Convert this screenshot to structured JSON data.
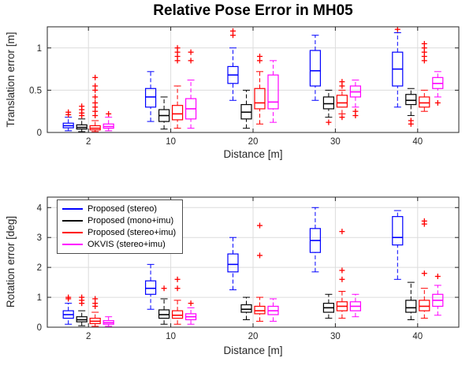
{
  "figure": {
    "title": "Relative Pose Error in MH05"
  },
  "colors": {
    "stereo": "#0000ff",
    "mono_imu": "#000000",
    "stereo_imu": "#ff0000",
    "okvis": "#ff00ff",
    "outlier": "#ff0000",
    "grid": "#dcdcdc",
    "axis": "#262626"
  },
  "chart_data": [
    {
      "type": "boxplot",
      "title": "Relative Pose Error in MH05",
      "xlabel": "Distance [m]",
      "ylabel": "Translation error [m]",
      "categories": [
        "2",
        "10",
        "20",
        "30",
        "40"
      ],
      "ylim": [
        0,
        1.25
      ],
      "yticks": [
        0,
        0.5,
        1
      ],
      "ytick_labels": [
        "0",
        "0.5",
        "1"
      ],
      "grid": true,
      "series": [
        {
          "name": "Proposed (stereo)",
          "color": "#0000ff",
          "boxes": [
            {
              "whislo": 0.02,
              "q1": 0.055,
              "med": 0.08,
              "q3": 0.11,
              "whishi": 0.18,
              "fliers": [
                0.21,
                0.24
              ]
            },
            {
              "whislo": 0.13,
              "q1": 0.3,
              "med": 0.42,
              "q3": 0.52,
              "whishi": 0.72,
              "fliers": []
            },
            {
              "whislo": 0.38,
              "q1": 0.58,
              "med": 0.68,
              "q3": 0.78,
              "whishi": 1.0,
              "fliers": [
                1.15,
                1.2
              ]
            },
            {
              "whislo": 0.38,
              "q1": 0.55,
              "med": 0.73,
              "q3": 0.97,
              "whishi": 1.15,
              "fliers": []
            },
            {
              "whislo": 0.3,
              "q1": 0.55,
              "med": 0.75,
              "q3": 0.95,
              "whishi": 1.18,
              "fliers": [
                1.22
              ]
            }
          ]
        },
        {
          "name": "Proposed (mono+imu)",
          "color": "#000000",
          "boxes": [
            {
              "whislo": 0.01,
              "q1": 0.04,
              "med": 0.06,
              "q3": 0.09,
              "whishi": 0.16,
              "fliers": [
                0.2,
                0.23,
                0.27,
                0.31
              ]
            },
            {
              "whislo": 0.04,
              "q1": 0.13,
              "med": 0.2,
              "q3": 0.27,
              "whishi": 0.42,
              "fliers": []
            },
            {
              "whislo": 0.05,
              "q1": 0.16,
              "med": 0.24,
              "q3": 0.33,
              "whishi": 0.5,
              "fliers": []
            },
            {
              "whislo": 0.18,
              "q1": 0.28,
              "med": 0.34,
              "q3": 0.42,
              "whishi": 0.5,
              "fliers": [
                0.12
              ]
            },
            {
              "whislo": 0.2,
              "q1": 0.33,
              "med": 0.38,
              "q3": 0.45,
              "whishi": 0.52,
              "fliers": [
                0.1,
                0.14
              ]
            }
          ]
        },
        {
          "name": "Proposed (stereo+imu)",
          "color": "#ff0000",
          "boxes": [
            {
              "whislo": 0.01,
              "q1": 0.03,
              "med": 0.05,
              "q3": 0.08,
              "whishi": 0.14,
              "fliers": [
                0.2,
                0.25,
                0.3,
                0.35,
                0.42,
                0.5,
                0.55,
                0.65
              ]
            },
            {
              "whislo": 0.05,
              "q1": 0.15,
              "med": 0.22,
              "q3": 0.32,
              "whishi": 0.55,
              "fliers": [
                0.85,
                0.9,
                0.95,
                1.0
              ]
            },
            {
              "whislo": 0.1,
              "q1": 0.28,
              "med": 0.35,
              "q3": 0.52,
              "whishi": 0.72,
              "fliers": [
                0.85,
                0.9
              ]
            },
            {
              "whislo": 0.22,
              "q1": 0.3,
              "med": 0.35,
              "q3": 0.44,
              "whishi": 0.5,
              "fliers": [
                0.18,
                0.55,
                0.6
              ]
            },
            {
              "whislo": 0.25,
              "q1": 0.3,
              "med": 0.35,
              "q3": 0.42,
              "whishi": 0.5,
              "fliers": [
                0.85,
                0.9,
                0.95,
                1.0,
                1.05
              ]
            }
          ]
        },
        {
          "name": "OKVIS (stereo+imu)",
          "color": "#ff00ff",
          "boxes": [
            {
              "whislo": 0.02,
              "q1": 0.05,
              "med": 0.07,
              "q3": 0.1,
              "whishi": 0.18,
              "fliers": [
                0.22
              ]
            },
            {
              "whislo": 0.05,
              "q1": 0.16,
              "med": 0.28,
              "q3": 0.4,
              "whishi": 0.62,
              "fliers": [
                0.85,
                0.95
              ]
            },
            {
              "whislo": 0.12,
              "q1": 0.28,
              "med": 0.36,
              "q3": 0.68,
              "whishi": 0.85,
              "fliers": []
            },
            {
              "whislo": 0.3,
              "q1": 0.42,
              "med": 0.48,
              "q3": 0.55,
              "whishi": 0.62,
              "fliers": [
                0.2,
                0.25
              ]
            },
            {
              "whislo": 0.42,
              "q1": 0.52,
              "med": 0.58,
              "q3": 0.65,
              "whishi": 0.72,
              "fliers": [
                0.35
              ]
            }
          ]
        }
      ]
    },
    {
      "type": "boxplot",
      "xlabel": "Distance [m]",
      "ylabel": "Rotation error [deg]",
      "categories": [
        "2",
        "10",
        "20",
        "30",
        "40"
      ],
      "ylim": [
        0,
        4.35
      ],
      "yticks": [
        0,
        1,
        2,
        3,
        4
      ],
      "ytick_labels": [
        "0",
        "1",
        "2",
        "3",
        "4"
      ],
      "grid": true,
      "legend_position": "top-left",
      "series": [
        {
          "name": "Proposed (stereo)",
          "color": "#0000ff",
          "boxes": [
            {
              "whislo": 0.1,
              "q1": 0.3,
              "med": 0.42,
              "q3": 0.55,
              "whishi": 0.8,
              "fliers": [
                0.95,
                1.0
              ]
            },
            {
              "whislo": 0.6,
              "q1": 1.1,
              "med": 1.3,
              "q3": 1.55,
              "whishi": 2.1,
              "fliers": []
            },
            {
              "whislo": 1.25,
              "q1": 1.85,
              "med": 2.1,
              "q3": 2.45,
              "whishi": 3.0,
              "fliers": []
            },
            {
              "whislo": 1.85,
              "q1": 2.5,
              "med": 2.9,
              "q3": 3.3,
              "whishi": 4.0,
              "fliers": []
            },
            {
              "whislo": 1.6,
              "q1": 2.75,
              "med": 3.0,
              "q3": 3.7,
              "whishi": 3.9,
              "fliers": []
            }
          ]
        },
        {
          "name": "Proposed (mono+imu)",
          "color": "#000000",
          "boxes": [
            {
              "whislo": 0.05,
              "q1": 0.18,
              "med": 0.25,
              "q3": 0.35,
              "whishi": 0.55,
              "fliers": [
                0.8,
                0.9,
                1.0
              ]
            },
            {
              "whislo": 0.1,
              "q1": 0.3,
              "med": 0.42,
              "q3": 0.58,
              "whishi": 0.95,
              "fliers": [
                1.3
              ]
            },
            {
              "whislo": 0.25,
              "q1": 0.5,
              "med": 0.6,
              "q3": 0.75,
              "whishi": 1.0,
              "fliers": []
            },
            {
              "whislo": 0.3,
              "q1": 0.5,
              "med": 0.65,
              "q3": 0.8,
              "whishi": 1.1,
              "fliers": []
            },
            {
              "whislo": 0.25,
              "q1": 0.5,
              "med": 0.65,
              "q3": 0.9,
              "whishi": 1.5,
              "fliers": []
            }
          ]
        },
        {
          "name": "Proposed (stereo+imu)",
          "color": "#ff0000",
          "boxes": [
            {
              "whislo": 0.03,
              "q1": 0.12,
              "med": 0.2,
              "q3": 0.3,
              "whishi": 0.5,
              "fliers": [
                0.7,
                0.8,
                0.95
              ]
            },
            {
              "whislo": 0.1,
              "q1": 0.3,
              "med": 0.4,
              "q3": 0.55,
              "whishi": 0.9,
              "fliers": [
                1.3,
                1.6
              ]
            },
            {
              "whislo": 0.2,
              "q1": 0.45,
              "med": 0.55,
              "q3": 0.7,
              "whishi": 1.0,
              "fliers": [
                2.4,
                3.4
              ]
            },
            {
              "whislo": 0.3,
              "q1": 0.55,
              "med": 0.7,
              "q3": 0.85,
              "whishi": 1.2,
              "fliers": [
                1.6,
                1.9,
                3.2
              ]
            },
            {
              "whislo": 0.3,
              "q1": 0.55,
              "med": 0.7,
              "q3": 0.9,
              "whishi": 1.3,
              "fliers": [
                1.8,
                3.45,
                3.55
              ]
            }
          ]
        },
        {
          "name": "OKVIS (stereo+imu)",
          "color": "#ff00ff",
          "boxes": [
            {
              "whislo": 0.03,
              "q1": 0.1,
              "med": 0.15,
              "q3": 0.22,
              "whishi": 0.35,
              "fliers": []
            },
            {
              "whislo": 0.1,
              "q1": 0.25,
              "med": 0.35,
              "q3": 0.45,
              "whishi": 0.65,
              "fliers": [
                0.8
              ]
            },
            {
              "whislo": 0.2,
              "q1": 0.42,
              "med": 0.55,
              "q3": 0.7,
              "whishi": 0.95,
              "fliers": []
            },
            {
              "whislo": 0.35,
              "q1": 0.55,
              "med": 0.7,
              "q3": 0.85,
              "whishi": 1.1,
              "fliers": []
            },
            {
              "whislo": 0.4,
              "q1": 0.7,
              "med": 0.9,
              "q3": 1.1,
              "whishi": 1.4,
              "fliers": [
                1.7
              ]
            }
          ]
        }
      ]
    }
  ]
}
